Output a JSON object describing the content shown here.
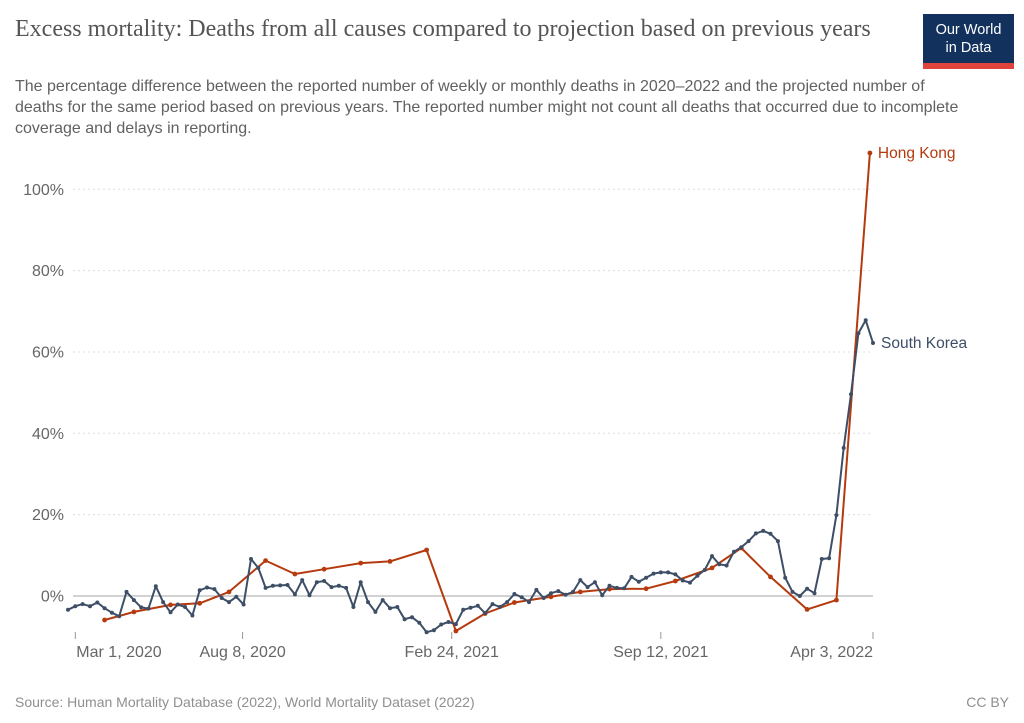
{
  "chart_data": {
    "type": "line",
    "title": "Excess mortality: Deaths from all causes compared to projection based on previous years",
    "subtitle": "The percentage difference between the reported number of weekly or monthly deaths in 2020–2022 and the projected number of deaths for the same period based on previous years. The reported number might not count all deaths that occurred due to incomplete coverage and delays in reporting.",
    "source": "Source: Human Mortality Database (2022), World Mortality Dataset (2022)",
    "license": "CC BY",
    "logo": {
      "line1": "Our World",
      "line2": "in Data"
    },
    "colors": {
      "hong_kong": "#b53a0e",
      "south_korea": "#3d4e66",
      "grid": "#dddddd",
      "zero_line": "#a6a6a6",
      "axis_text": "#666666",
      "tick_mark": "#999999",
      "title_text": "#555555",
      "subtitle_text": "#616161",
      "footer_text": "#8f8f8f",
      "logo_bg": "#12315c",
      "logo_accent": "#e0433c"
    },
    "x_axis": {
      "domain": [
        "2020-02-23",
        "2022-04-03"
      ],
      "ticks": [
        {
          "date": "2020-03-01",
          "label": "Mar 1, 2020"
        },
        {
          "date": "2020-08-08",
          "label": "Aug 8, 2020"
        },
        {
          "date": "2021-02-24",
          "label": "Feb 24, 2021"
        },
        {
          "date": "2021-09-12",
          "label": "Sep 12, 2021"
        },
        {
          "date": "2022-04-03",
          "label": "Apr 3, 2022"
        }
      ]
    },
    "y_axis": {
      "ticks": [
        0,
        20,
        40,
        60,
        80,
        100
      ],
      "suffix": "%",
      "min": -10,
      "max": 112,
      "grid": "dashed"
    },
    "legend_position": "right-of-line-end",
    "series": [
      {
        "name": "Hong Kong",
        "key": "hong-kong",
        "color": "#b53a0e",
        "frequency": "monthly",
        "points": [
          [
            "2020-03-29",
            -5.9
          ],
          [
            "2020-04-26",
            -3.9
          ],
          [
            "2020-05-31",
            -2.2
          ],
          [
            "2020-06-28",
            -1.8
          ],
          [
            "2020-07-26",
            1.0
          ],
          [
            "2020-08-30",
            8.7
          ],
          [
            "2020-09-27",
            5.4
          ],
          [
            "2020-10-25",
            6.6
          ],
          [
            "2020-11-29",
            8.1
          ],
          [
            "2020-12-27",
            8.5
          ],
          [
            "2021-01-31",
            11.3
          ],
          [
            "2021-02-28",
            -8.6
          ],
          [
            "2021-03-28",
            -4.3
          ],
          [
            "2021-04-25",
            -1.6
          ],
          [
            "2021-05-30",
            -0.2
          ],
          [
            "2021-06-27",
            1.0
          ],
          [
            "2021-07-25",
            1.7
          ],
          [
            "2021-08-29",
            1.8
          ],
          [
            "2021-09-26",
            3.7
          ],
          [
            "2021-10-31",
            6.9
          ],
          [
            "2021-11-28",
            11.8
          ],
          [
            "2021-12-26",
            4.7
          ],
          [
            "2022-01-30",
            -3.3
          ],
          [
            "2022-02-27",
            -1.0
          ],
          [
            "2022-03-31",
            108.9
          ]
        ]
      },
      {
        "name": "South Korea",
        "key": "south-korea",
        "color": "#3d4e66",
        "frequency": "weekly",
        "start": "2020-02-23",
        "interval_days": 7,
        "values": [
          -3.4,
          -2.5,
          -2.0,
          -2.5,
          -1.6,
          -3.0,
          -4.1,
          -5.0,
          1.0,
          -1.0,
          -2.8,
          -3.1,
          2.4,
          -1.5,
          -4.0,
          -2.1,
          -2.7,
          -4.8,
          1.4,
          2.1,
          1.7,
          -0.5,
          -1.5,
          -0.2,
          -2.1,
          9.1,
          6.9,
          2.0,
          2.5,
          2.6,
          2.7,
          0.4,
          3.9,
          0.2,
          3.4,
          3.7,
          2.2,
          2.5,
          2.0,
          -2.7,
          3.4,
          -1.5,
          -3.9,
          -1.0,
          -3.0,
          -2.7,
          -5.7,
          -5.2,
          -6.6,
          -8.9,
          -8.4,
          -7.0,
          -6.4,
          -6.9,
          -3.4,
          -2.9,
          -2.4,
          -4.2,
          -2.0,
          -2.7,
          -1.5,
          0.5,
          -0.3,
          -1.5,
          1.5,
          -0.5,
          0.7,
          1.2,
          0.3,
          1.0,
          3.9,
          2.2,
          3.4,
          0.2,
          2.5,
          2.0,
          1.9,
          4.7,
          3.5,
          4.5,
          5.5,
          5.8,
          5.8,
          5.3,
          3.8,
          3.3,
          5.0,
          6.4,
          9.8,
          7.8,
          7.5,
          10.9,
          12.0,
          13.5,
          15.4,
          16.0,
          15.3,
          13.5,
          4.5,
          1.0,
          0.0,
          1.8,
          0.7,
          9.1,
          9.3,
          19.9,
          36.4,
          49.6,
          64.6,
          67.8,
          62.2
        ]
      }
    ]
  }
}
